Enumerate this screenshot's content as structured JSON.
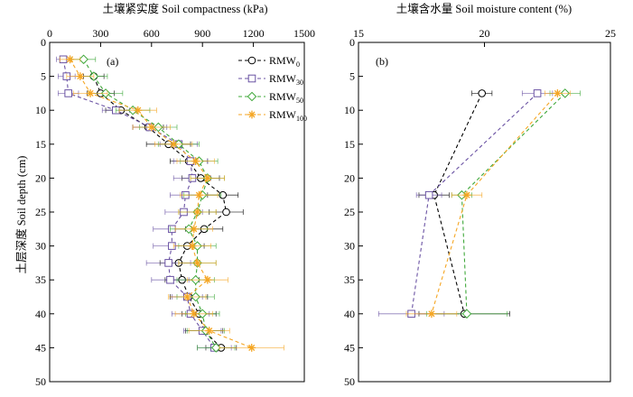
{
  "chart_data": [
    {
      "type": "line",
      "panel_label": "(a)",
      "title": "土壤紧实度 Soil compactness (kPa)",
      "ylabel": "土层深度 Soil depth (cm)",
      "x_axis_position": "top",
      "xlim": [
        0,
        1500
      ],
      "ylim": [
        0,
        50
      ],
      "y_inverted": true,
      "x_ticks": [
        0,
        300,
        600,
        900,
        1200,
        1500
      ],
      "y_ticks": [
        0,
        5,
        10,
        15,
        20,
        25,
        30,
        35,
        40,
        45,
        50
      ],
      "grid": false,
      "legend_position": "top-right",
      "series": [
        {
          "name": "RMW",
          "name_sub": "0",
          "color": "#000000",
          "marker": "circle",
          "depth": [
            5,
            7.5,
            10,
            12.5,
            15,
            17.5,
            20,
            22.5,
            25,
            27.5,
            30,
            32.5,
            35,
            37.5,
            40,
            42.5,
            45
          ],
          "value": [
            260,
            300,
            420,
            580,
            700,
            820,
            890,
            1020,
            1040,
            910,
            810,
            760,
            780,
            820,
            880,
            910,
            1010
          ],
          "error": [
            60,
            80,
            90,
            90,
            130,
            110,
            110,
            90,
            100,
            110,
            100,
            110,
            100,
            110,
            100,
            110,
            90
          ]
        },
        {
          "name": "RMW",
          "name_sub": "30",
          "color": "#6a52a3",
          "marker": "square",
          "depth": [
            2.5,
            5,
            7.5,
            10,
            12.5,
            15,
            17.5,
            20,
            22.5,
            25,
            27.5,
            30,
            32.5,
            35,
            37.5,
            40,
            42.5,
            45
          ],
          "value": [
            80,
            100,
            110,
            390,
            590,
            760,
            830,
            840,
            800,
            790,
            720,
            720,
            700,
            710,
            810,
            830,
            900,
            970
          ],
          "error": [
            40,
            50,
            60,
            80,
            100,
            110,
            100,
            110,
            90,
            110,
            110,
            110,
            130,
            110,
            90,
            110,
            110,
            100
          ]
        },
        {
          "name": "RMW",
          "name_sub": "50",
          "color": "#3fa83a",
          "marker": "diamond",
          "depth": [
            2.5,
            5,
            7.5,
            10,
            12.5,
            15,
            17.5,
            20,
            22.5,
            25,
            27.5,
            30,
            32.5,
            35,
            37.5,
            40,
            42.5,
            45
          ],
          "value": [
            200,
            260,
            330,
            490,
            640,
            760,
            880,
            930,
            900,
            870,
            820,
            870,
            870,
            860,
            860,
            900,
            920,
            980
          ],
          "error": [
            70,
            80,
            100,
            100,
            110,
            120,
            110,
            100,
            110,
            110,
            110,
            110,
            110,
            110,
            110,
            100,
            110,
            110
          ]
        },
        {
          "name": "RMW",
          "name_sub": "100",
          "color": "#f5a623",
          "marker": "star",
          "depth": [
            2.5,
            5,
            7.5,
            10,
            12.5,
            15,
            17.5,
            20,
            22.5,
            25,
            27.5,
            30,
            32.5,
            35,
            37.5,
            40,
            42.5,
            45
          ],
          "value": [
            120,
            180,
            240,
            520,
            600,
            730,
            860,
            930,
            880,
            870,
            850,
            840,
            870,
            930,
            810,
            850,
            940,
            1190
          ],
          "error": [
            60,
            80,
            100,
            110,
            110,
            110,
            110,
            100,
            110,
            110,
            110,
            110,
            110,
            120,
            110,
            110,
            120,
            190
          ]
        }
      ]
    },
    {
      "type": "line",
      "panel_label": "(b)",
      "title": "土壤含水量 Soil moisture content (%)",
      "x_axis_position": "top",
      "xlim": [
        15,
        25
      ],
      "ylim": [
        0,
        50
      ],
      "y_inverted": true,
      "x_ticks": [
        15,
        20,
        25
      ],
      "y_ticks": [
        0,
        5,
        10,
        15,
        20,
        25,
        30,
        35,
        40,
        45,
        50
      ],
      "grid": false,
      "series": [
        {
          "name": "RMW",
          "name_sub": "0",
          "color": "#000000",
          "marker": "circle",
          "depth": [
            7.5,
            22.5,
            40
          ],
          "value": [
            19.9,
            18.0,
            19.2
          ],
          "error": [
            0.4,
            0.6,
            1.8
          ]
        },
        {
          "name": "RMW",
          "name_sub": "30",
          "color": "#6a52a3",
          "marker": "square",
          "depth": [
            7.5,
            22.5,
            40
          ],
          "value": [
            22.1,
            17.8,
            17.1
          ],
          "error": [
            0.6,
            0.5,
            1.3
          ]
        },
        {
          "name": "RMW",
          "name_sub": "50",
          "color": "#3fa83a",
          "marker": "diamond",
          "depth": [
            7.5,
            22.5,
            40
          ],
          "value": [
            23.2,
            19.1,
            19.3
          ],
          "error": [
            0.6,
            0.4,
            1.6
          ]
        },
        {
          "name": "RMW",
          "name_sub": "100",
          "color": "#f5a623",
          "marker": "star",
          "depth": [
            7.5,
            22.5,
            40
          ],
          "value": [
            22.9,
            19.3,
            17.9
          ],
          "error": [
            0.5,
            0.6,
            1.0
          ]
        }
      ]
    }
  ]
}
